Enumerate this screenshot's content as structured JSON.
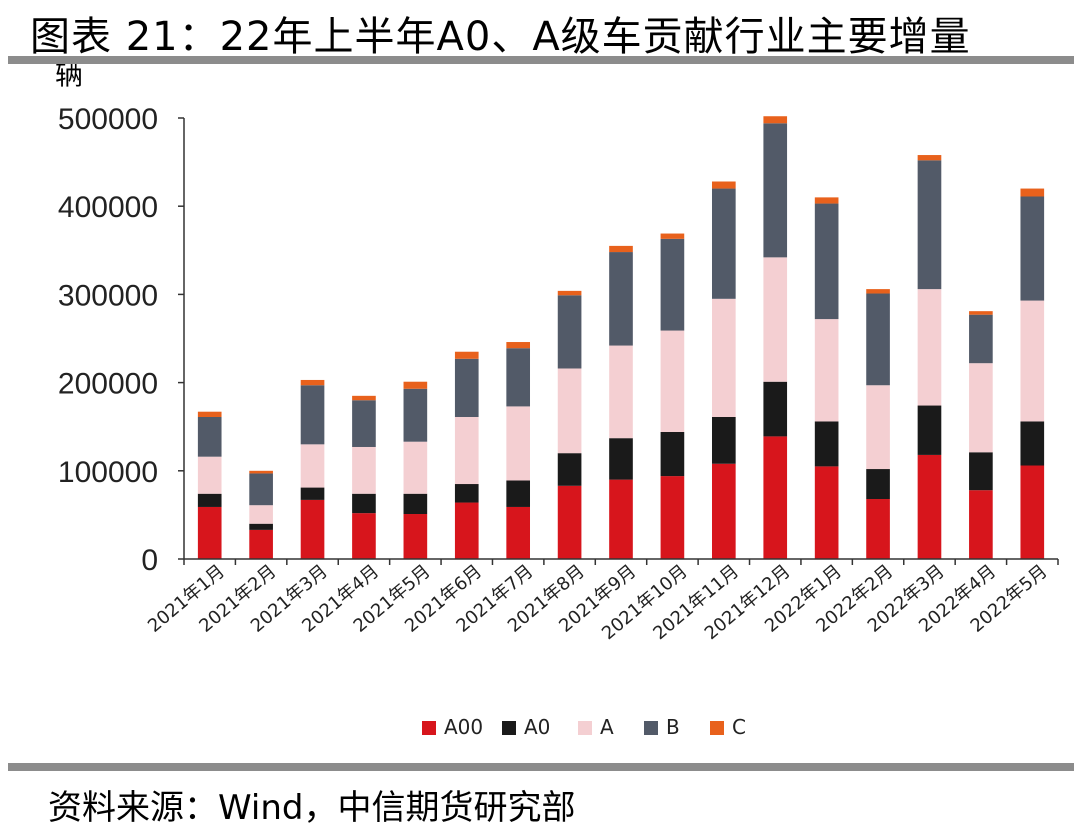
{
  "page": {
    "title": "图表 21：22年上半年A0、A级车贡献行业主要增量",
    "source": "资料来源：Wind，中信期货研究部"
  },
  "chart_data": {
    "type": "bar",
    "stacked": true,
    "title": "",
    "unit_label": "辆",
    "ylim": [
      0,
      500000
    ],
    "yticks": [
      "0",
      "100000",
      "200000",
      "300000",
      "400000",
      "500000"
    ],
    "grid": false,
    "legend_position": "bottom",
    "categories": [
      "2021年1月",
      "2021年2月",
      "2021年3月",
      "2021年4月",
      "2021年5月",
      "2021年6月",
      "2021年7月",
      "2021年8月",
      "2021年9月",
      "2021年10月",
      "2021年11月",
      "2021年12月",
      "2022年1月",
      "2022年2月",
      "2022年3月",
      "2022年4月",
      "2022年5月"
    ],
    "series": [
      {
        "name": "A00",
        "color": "#d7151c",
        "values": [
          59000,
          33000,
          67000,
          52000,
          51000,
          64000,
          59000,
          83000,
          90000,
          94000,
          108000,
          139000,
          105000,
          68000,
          118000,
          78000,
          106000
        ]
      },
      {
        "name": "A0",
        "color": "#1a1a1a",
        "values": [
          15000,
          7000,
          14000,
          22000,
          23000,
          21000,
          30000,
          37000,
          47000,
          50000,
          53000,
          62000,
          51000,
          34000,
          56000,
          43000,
          50000
        ]
      },
      {
        "name": "A",
        "color": "#f4cfd2",
        "values": [
          42000,
          21000,
          49000,
          53000,
          59000,
          76000,
          84000,
          96000,
          105000,
          115000,
          134000,
          141000,
          116000,
          95000,
          132000,
          101000,
          137000
        ]
      },
      {
        "name": "B",
        "color": "#525a68",
        "values": [
          45000,
          36000,
          67000,
          53000,
          60000,
          66000,
          66000,
          83000,
          106000,
          104000,
          125000,
          152000,
          131000,
          104000,
          146000,
          55000,
          118000
        ]
      },
      {
        "name": "C",
        "color": "#e8611c",
        "values": [
          6000,
          3000,
          6000,
          5000,
          8000,
          8000,
          7000,
          5000,
          7000,
          6000,
          8000,
          8000,
          7000,
          5000,
          6000,
          4000,
          9000
        ]
      }
    ]
  }
}
